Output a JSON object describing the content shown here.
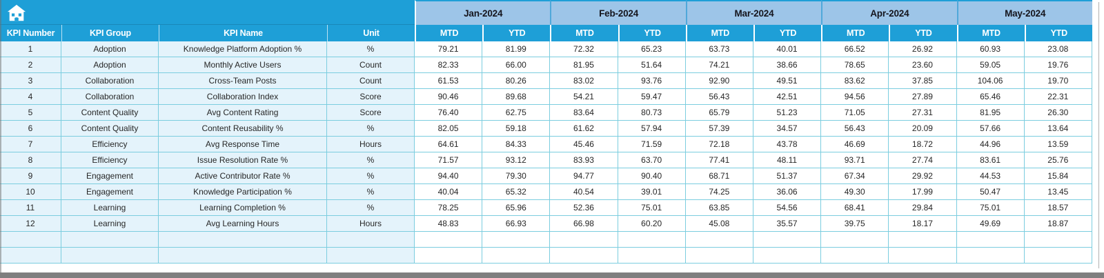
{
  "colors": {
    "accent_blue": "#1E9FD7",
    "month_header_blue": "#9DC5E8",
    "grid_line_teal": "#7BCDDF",
    "left_section_fill": "#E4F3FB",
    "window_bar_gray": "#7F7F7F",
    "header_text_white": "#FFFFFF",
    "data_text": "#262626"
  },
  "header": {
    "home_icon": "home-icon",
    "columns": [
      "KPI Number",
      "KPI Group",
      "KPI Name",
      "Unit"
    ],
    "months": [
      "Jan-2024",
      "Feb-2024",
      "Mar-2024",
      "Apr-2024",
      "May-2024"
    ],
    "sub_headers": [
      "MTD",
      "YTD"
    ]
  },
  "table": {
    "empty_row_count": 2,
    "rows": [
      {
        "number": "1",
        "group": "Adoption",
        "name": "Knowledge Platform Adoption %",
        "unit": "%",
        "values": [
          "79.21",
          "81.99",
          "72.32",
          "65.23",
          "63.73",
          "40.01",
          "66.52",
          "26.92",
          "60.93",
          "23.08"
        ]
      },
      {
        "number": "2",
        "group": "Adoption",
        "name": "Monthly Active Users",
        "unit": "Count",
        "values": [
          "82.33",
          "66.00",
          "81.95",
          "51.64",
          "74.21",
          "38.66",
          "78.65",
          "23.60",
          "59.05",
          "19.76"
        ]
      },
      {
        "number": "3",
        "group": "Collaboration",
        "name": "Cross-Team Posts",
        "unit": "Count",
        "values": [
          "61.53",
          "80.26",
          "83.02",
          "93.76",
          "92.90",
          "49.51",
          "83.62",
          "37.85",
          "104.06",
          "19.70"
        ]
      },
      {
        "number": "4",
        "group": "Collaboration",
        "name": "Collaboration Index",
        "unit": "Score",
        "values": [
          "90.46",
          "89.68",
          "54.21",
          "59.47",
          "56.43",
          "42.51",
          "94.56",
          "27.89",
          "65.46",
          "22.31"
        ]
      },
      {
        "number": "5",
        "group": "Content Quality",
        "name": "Avg Content Rating",
        "unit": "Score",
        "values": [
          "76.40",
          "62.75",
          "83.64",
          "80.73",
          "65.79",
          "51.23",
          "71.05",
          "27.31",
          "81.95",
          "26.30"
        ]
      },
      {
        "number": "6",
        "group": "Content Quality",
        "name": "Content Reusability %",
        "unit": "%",
        "values": [
          "82.05",
          "59.18",
          "61.62",
          "57.94",
          "57.39",
          "34.57",
          "56.43",
          "20.09",
          "57.66",
          "13.64"
        ]
      },
      {
        "number": "7",
        "group": "Efficiency",
        "name": "Avg Response Time",
        "unit": "Hours",
        "values": [
          "64.61",
          "84.33",
          "45.46",
          "71.59",
          "72.18",
          "43.78",
          "46.69",
          "18.72",
          "44.96",
          "13.59"
        ]
      },
      {
        "number": "8",
        "group": "Efficiency",
        "name": "Issue Resolution Rate %",
        "unit": "%",
        "values": [
          "71.57",
          "93.12",
          "83.93",
          "63.70",
          "77.41",
          "48.11",
          "93.71",
          "27.74",
          "83.61",
          "25.76"
        ]
      },
      {
        "number": "9",
        "group": "Engagement",
        "name": "Active Contributor Rate %",
        "unit": "%",
        "values": [
          "94.40",
          "79.30",
          "94.77",
          "90.40",
          "68.71",
          "51.37",
          "67.34",
          "29.92",
          "44.53",
          "15.84"
        ]
      },
      {
        "number": "10",
        "group": "Engagement",
        "name": "Knowledge Participation %",
        "unit": "%",
        "values": [
          "40.04",
          "65.32",
          "40.54",
          "39.01",
          "74.25",
          "36.06",
          "49.30",
          "17.99",
          "50.47",
          "13.45"
        ]
      },
      {
        "number": "11",
        "group": "Learning",
        "name": "Learning Completion %",
        "unit": "%",
        "values": [
          "78.25",
          "65.96",
          "52.36",
          "75.01",
          "63.85",
          "54.56",
          "68.41",
          "29.84",
          "75.01",
          "18.57"
        ]
      },
      {
        "number": "12",
        "group": "Learning",
        "name": "Avg Learning Hours",
        "unit": "Hours",
        "values": [
          "48.83",
          "66.93",
          "66.98",
          "60.20",
          "45.08",
          "35.57",
          "39.75",
          "18.17",
          "49.69",
          "18.87"
        ]
      }
    ]
  }
}
